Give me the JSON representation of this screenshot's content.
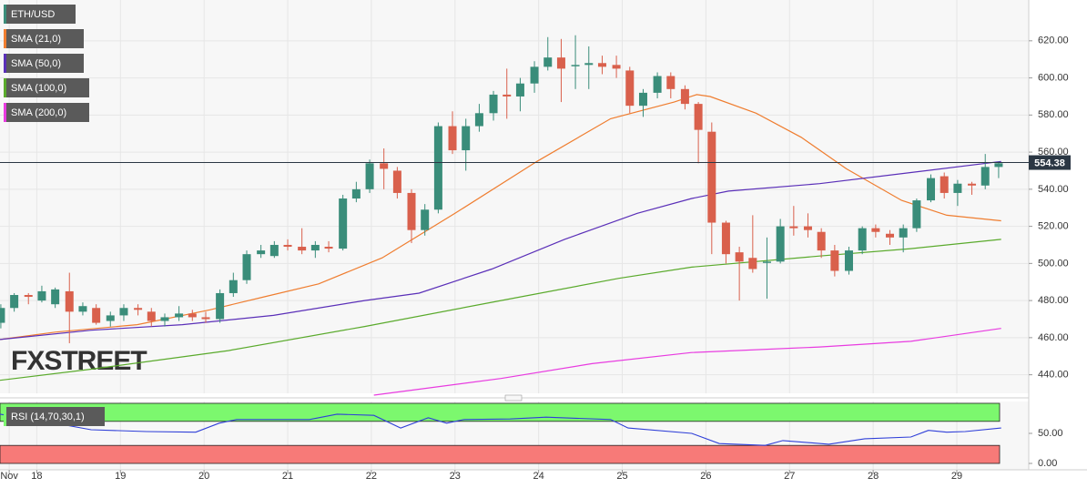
{
  "chart_data": [
    {
      "type": "candlestick",
      "name": "ETH/USD",
      "up_color": "#3a8d7a",
      "down_color": "#d9604c",
      "x": [
        17.57,
        17.73,
        17.9,
        18.06,
        18.22,
        18.39,
        18.55,
        18.71,
        18.88,
        19.04,
        19.21,
        19.37,
        19.53,
        19.7,
        19.86,
        20.02,
        20.19,
        20.35,
        20.51,
        20.68,
        20.84,
        21.0,
        21.17,
        21.33,
        21.49,
        21.66,
        21.82,
        21.98,
        22.15,
        22.31,
        22.48,
        22.64,
        22.8,
        22.97,
        23.13,
        23.29,
        23.46,
        23.62,
        23.78,
        23.95,
        24.11,
        24.27,
        24.44,
        24.6,
        24.76,
        24.93,
        25.09,
        25.25,
        25.42,
        25.58,
        25.75,
        25.91,
        26.07,
        26.24,
        26.4,
        26.56,
        26.73,
        26.89,
        27.05,
        27.22,
        27.38,
        27.54,
        27.71,
        27.87,
        28.03,
        28.2,
        28.36,
        28.52,
        28.69,
        28.85,
        29.01,
        29.18,
        29.34,
        29.5
      ],
      "open": [
        468,
        476,
        483,
        480,
        478,
        485,
        474,
        476,
        469,
        472,
        476,
        474,
        469,
        471,
        473,
        471,
        470,
        484,
        491,
        505,
        504,
        510,
        509,
        507,
        509,
        508,
        535,
        540,
        554,
        550,
        538,
        518,
        529,
        574,
        561,
        574,
        581,
        591,
        590,
        597,
        606,
        611,
        607,
        607,
        608,
        607,
        604,
        585,
        592,
        601,
        594,
        586,
        571,
        522,
        506,
        503,
        501,
        501,
        520,
        520,
        517,
        507,
        496,
        507,
        519,
        516,
        514,
        519,
        534,
        547,
        538,
        543,
        542,
        552
      ],
      "high": [
        478,
        484,
        484,
        488,
        487,
        495,
        479,
        478,
        474,
        478,
        478,
        476,
        473,
        477,
        475,
        474,
        486,
        495,
        507,
        510,
        512,
        513,
        519,
        512,
        512,
        537,
        544,
        556,
        562,
        552,
        540,
        532,
        576,
        582,
        578,
        586,
        593,
        605,
        600,
        609,
        622,
        621,
        623,
        617,
        612,
        612,
        606,
        594,
        603,
        603,
        596,
        587,
        576,
        523,
        509,
        526,
        514,
        524,
        531,
        527,
        519,
        510,
        509,
        520,
        521,
        518,
        521,
        535,
        548,
        549,
        545,
        544,
        559,
        555
      ],
      "low": [
        465,
        474,
        478,
        479,
        476,
        457,
        472,
        467,
        466,
        469,
        472,
        466,
        466,
        469,
        469,
        468,
        468,
        482,
        489,
        503,
        503,
        507,
        505,
        503,
        506,
        507,
        533,
        538,
        540,
        535,
        511,
        515,
        527,
        559,
        550,
        571,
        577,
        578,
        582,
        592,
        604,
        587,
        594,
        594,
        602,
        600,
        581,
        579,
        589,
        589,
        583,
        554,
        505,
        500,
        480,
        495,
        481,
        500,
        515,
        514,
        503,
        493,
        494,
        505,
        514,
        510,
        506,
        517,
        533,
        535,
        531,
        537,
        540,
        546
      ],
      "close": [
        476,
        483,
        482,
        485,
        486,
        474,
        477,
        468,
        472,
        476,
        475,
        469,
        471,
        473,
        471,
        470,
        484,
        491,
        505,
        507,
        510,
        509,
        507,
        510,
        508,
        535,
        540,
        554,
        551,
        538,
        518,
        529,
        574,
        561,
        574,
        581,
        591,
        590,
        597,
        606,
        611,
        605,
        607,
        608,
        606,
        605,
        585,
        592,
        601,
        594,
        586,
        572,
        522,
        505,
        501,
        497,
        501,
        520,
        519,
        518,
        507,
        496,
        507,
        519,
        517,
        514,
        519,
        534,
        546,
        538,
        543,
        542,
        552,
        554
      ],
      "series": [
        {
          "name": "SMA (21,0)",
          "color": "#ef7d2f",
          "x": [
            17.56,
            18.22,
            19.2,
            20.07,
            20.72,
            21.37,
            22.13,
            23.0,
            23.98,
            24.86,
            25.62,
            25.89,
            26.05,
            26.6,
            27.14,
            27.68,
            28.34,
            28.88,
            29.53
          ],
          "values": [
            459,
            463,
            467,
            475,
            482,
            489,
            503,
            527,
            555,
            578,
            587,
            591,
            590,
            581,
            568,
            551,
            534,
            526,
            523
          ]
        },
        {
          "name": "SMA (50,0)",
          "color": "#5a2fb8",
          "x": [
            17.56,
            18.65,
            19.74,
            20.83,
            21.92,
            22.57,
            23.44,
            24.31,
            25.18,
            25.83,
            26.27,
            27.36,
            28.45,
            29.53
          ],
          "values": [
            459,
            464,
            467,
            472,
            480,
            484,
            497,
            513,
            527,
            535,
            539,
            543,
            549,
            555
          ]
        },
        {
          "name": "SMA (100,0)",
          "color": "#5aaa2c",
          "x": [
            17.56,
            18.65,
            20.29,
            21.92,
            23.55,
            24.96,
            25.83,
            27.36,
            28.45,
            29.53
          ],
          "values": [
            437,
            443,
            453,
            466,
            480,
            492,
            498,
            504,
            508,
            513
          ]
        },
        {
          "name": "SMA (200,0)",
          "color": "#e83be0",
          "x": [
            22.03,
            23.55,
            24.64,
            25.83,
            27.36,
            28.45,
            29.53
          ],
          "values": [
            429,
            438,
            446,
            452,
            455,
            458,
            465
          ]
        }
      ],
      "last_price": 554.38,
      "watermark": "FXSTREET",
      "xlim": [
        17.56,
        29.86
      ],
      "xticks": [
        {
          "value": 17.67,
          "label": "Nov"
        },
        18,
        19,
        20,
        21,
        22,
        23,
        24,
        25,
        26,
        27,
        28,
        29
      ],
      "ylim": [
        430,
        642
      ],
      "yticks": [
        {
          "value": 440,
          "label": "440.00"
        },
        {
          "value": 460,
          "label": "460.00"
        },
        {
          "value": 480,
          "label": "480.00"
        },
        {
          "value": 500,
          "label": "500.00"
        },
        {
          "value": 520,
          "label": "520.00"
        },
        {
          "value": 540,
          "label": "540.00"
        },
        {
          "value": 560,
          "label": "560.00"
        },
        {
          "value": 580,
          "label": "580.00"
        },
        {
          "value": 600,
          "label": "600.00"
        },
        {
          "value": 620,
          "label": "620.00"
        }
      ],
      "grid": true
    },
    {
      "type": "line",
      "name": "RSI (14,70,30,1)",
      "color": "#2f3fd8",
      "x": [
        17.56,
        18.22,
        18.65,
        19.31,
        19.9,
        20.18,
        20.39,
        21.26,
        21.59,
        22.03,
        22.35,
        22.68,
        22.9,
        23.11,
        23.66,
        24.09,
        24.86,
        25.07,
        25.83,
        26.16,
        26.71,
        26.92,
        27.47,
        27.9,
        28.45,
        28.66,
        28.88,
        29.1,
        29.53
      ],
      "values": [
        82,
        67,
        56,
        53,
        52,
        67,
        73,
        73,
        82,
        80,
        59,
        76,
        67,
        73,
        74,
        77,
        73,
        59,
        50,
        33,
        30,
        38,
        32,
        41,
        44,
        55,
        52,
        53,
        59
      ],
      "bands": [
        {
          "from": 70,
          "to": 100,
          "color": "#7cf86e"
        },
        {
          "from": 0,
          "to": 30,
          "color": "#f77a78"
        }
      ],
      "ylim": [
        0,
        100
      ],
      "yticks": [
        {
          "value": 0,
          "label": "0.00"
        },
        {
          "value": 50,
          "label": "50.00"
        }
      ]
    }
  ]
}
